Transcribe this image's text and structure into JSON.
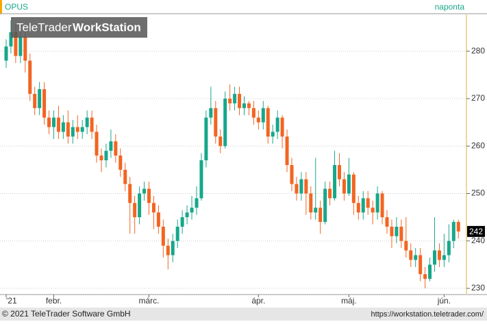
{
  "header": {
    "symbol": "OPUS",
    "interval": "naponta"
  },
  "watermark": [
    "TeleTrader",
    "WorkStation"
  ],
  "footer": {
    "copyright": "© 2021 TeleTrader Software GmbH",
    "url": "https://workstation.teletrader.com/"
  },
  "chart_data": {
    "type": "candlestick",
    "categories": [
      "'21",
      null,
      null,
      null,
      null,
      null,
      null,
      null,
      null,
      null,
      "febr.",
      null,
      null,
      null,
      null,
      null,
      null,
      null,
      null,
      null,
      null,
      null,
      null,
      null,
      null,
      null,
      null,
      null,
      null,
      null,
      "márc.",
      null,
      null,
      null,
      null,
      null,
      null,
      null,
      null,
      null,
      null,
      null,
      null,
      null,
      null,
      null,
      null,
      null,
      null,
      null,
      null,
      null,
      null,
      "ápr.",
      null,
      null,
      null,
      null,
      null,
      null,
      null,
      null,
      null,
      null,
      null,
      null,
      null,
      null,
      null,
      null,
      null,
      null,
      "máj.",
      null,
      null,
      null,
      null,
      null,
      null,
      null,
      null,
      null,
      null,
      null,
      null,
      null,
      null,
      null,
      null,
      null,
      null,
      null,
      "jún.",
      null,
      null,
      null
    ],
    "open": [
      278,
      281,
      284,
      279,
      283,
      278,
      271,
      268,
      272,
      266,
      264,
      266,
      263,
      265,
      262,
      264,
      263,
      264,
      266,
      263,
      258,
      257,
      259,
      261,
      258,
      255,
      252,
      248,
      245,
      250,
      251,
      248,
      246,
      243,
      239,
      237,
      240,
      243,
      245,
      246,
      247,
      249,
      257,
      266,
      268,
      262,
      260,
      270,
      269,
      271,
      268,
      269,
      268,
      266,
      265,
      268,
      262,
      263,
      266,
      262,
      256,
      252,
      250,
      253,
      250,
      246,
      247,
      244,
      251,
      249,
      256,
      253,
      250,
      254,
      248,
      246,
      249,
      247,
      246,
      250,
      245,
      243,
      241,
      243,
      240,
      238,
      236,
      237,
      233,
      232,
      235,
      238,
      236,
      237,
      240,
      244
    ],
    "high": [
      282.5,
      286.5,
      285.5,
      284.5,
      284.5,
      279.5,
      272.5,
      273.5,
      273.5,
      267.5,
      267.5,
      268.5,
      266.5,
      267.5,
      265.5,
      266.5,
      265.5,
      267.5,
      267.5,
      264.5,
      259.5,
      260.5,
      263.5,
      262.5,
      259.5,
      256.5,
      253.5,
      249.5,
      251.5,
      252.5,
      252.5,
      249.5,
      247.5,
      244.5,
      240.5,
      241.5,
      244.5,
      246.5,
      247.5,
      249.5,
      251.5,
      258.5,
      267.5,
      272.5,
      269.5,
      263.5,
      271.5,
      273,
      272.5,
      272.5,
      270.5,
      269.5,
      269.5,
      267.5,
      269.5,
      268.5,
      264.5,
      267.5,
      266.5,
      263.5,
      257.5,
      253.5,
      254.5,
      254.5,
      251.5,
      257.5,
      248.5,
      252.5,
      252.5,
      259,
      258.5,
      254.5,
      257.5,
      254.5,
      249.5,
      250.5,
      250.5,
      248.5,
      251.5,
      250.5,
      246.5,
      244.5,
      245,
      244.5,
      245,
      239.5,
      238.5,
      238.5,
      234.5,
      236.5,
      245,
      239.5,
      241.5,
      243.5,
      244.5,
      244.5
    ],
    "low": [
      276.5,
      279.5,
      277.5,
      277.5,
      275.5,
      269.5,
      266.5,
      266.5,
      264.5,
      262.5,
      261.5,
      261.5,
      261.5,
      260.5,
      260.5,
      261.5,
      261.5,
      262.5,
      261.5,
      256.5,
      254.5,
      255.5,
      257.5,
      256.5,
      253.5,
      250.5,
      241.5,
      241.5,
      243.5,
      248.5,
      245.5,
      242.5,
      241.5,
      236.5,
      234,
      235.5,
      238.5,
      241.5,
      243.5,
      244.5,
      245.5,
      248.5,
      255.5,
      264.5,
      260.5,
      258.5,
      259.5,
      267.5,
      267.5,
      266.5,
      266.5,
      266.5,
      264.5,
      263.5,
      263.5,
      260.5,
      260.5,
      261.5,
      259.5,
      254.5,
      250.5,
      248.5,
      248.5,
      245.5,
      244.5,
      244.5,
      241.5,
      243.5,
      247.5,
      248.5,
      251.5,
      248.5,
      249.5,
      245.5,
      244.5,
      244.5,
      245.5,
      243.5,
      244.5,
      243.5,
      241.5,
      238.5,
      239.5,
      238.5,
      236.5,
      234.5,
      234.5,
      231.5,
      230,
      231.5,
      233.5,
      234.5,
      234.5,
      235.5,
      238.5,
      240.5
    ],
    "close": [
      281,
      284,
      279,
      283,
      278,
      271,
      268,
      272,
      266,
      264,
      266,
      263,
      265,
      262,
      264,
      263,
      264,
      266,
      263,
      258,
      257,
      259,
      261,
      258,
      255,
      252,
      248,
      245,
      250,
      251,
      248,
      246,
      243,
      239,
      237,
      240,
      243,
      245,
      246,
      247,
      249,
      257,
      266,
      268,
      262,
      260,
      270,
      269,
      271,
      268,
      269,
      268,
      266,
      265,
      268,
      262,
      263,
      266,
      262,
      256,
      252,
      250,
      253,
      250,
      246,
      247,
      244,
      251,
      249,
      256,
      253,
      250,
      254,
      248,
      246,
      249,
      247,
      246,
      250,
      245,
      243,
      241,
      243,
      240,
      238,
      236,
      237,
      233,
      232,
      235,
      238,
      236,
      237,
      240,
      244,
      242
    ],
    "up_color": "#17a78a",
    "down_color": "#f26522",
    "ylim": [
      228.7,
      287.9
    ],
    "yticks": [
      230,
      240,
      250,
      260,
      270,
      280
    ],
    "grid": true
  }
}
